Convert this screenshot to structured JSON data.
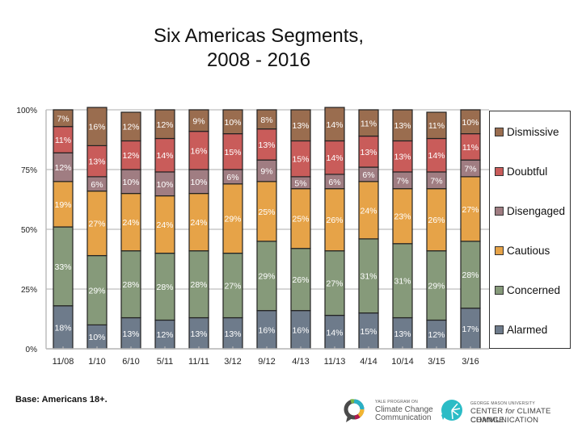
{
  "chart_data": {
    "type": "bar",
    "stacked": true,
    "percent_stacked": true,
    "title": "Six Americas Segments,\n2008 - 2016",
    "title_lines": [
      "Six Americas Segments,",
      "2008 - 2016"
    ],
    "xlabel": "",
    "ylabel": "",
    "ylim": [
      0,
      100
    ],
    "yticks": [
      "0%",
      "25%",
      "50%",
      "75%",
      "100%"
    ],
    "ytick_values": [
      0,
      25,
      50,
      75,
      100
    ],
    "grid": true,
    "legend_position": "right",
    "categories": [
      "11/08",
      "1/10",
      "6/10",
      "5/11",
      "11/11",
      "3/12",
      "9/12",
      "4/13",
      "11/13",
      "4/14",
      "10/14",
      "3/15",
      "3/16"
    ],
    "series": [
      {
        "name": "Alarmed",
        "color": "#6e7b8b",
        "values": [
          18,
          10,
          13,
          12,
          13,
          13,
          16,
          16,
          14,
          15,
          13,
          12,
          17
        ]
      },
      {
        "name": "Concerned",
        "color": "#869a7a",
        "values": [
          33,
          29,
          28,
          28,
          28,
          27,
          29,
          26,
          27,
          31,
          31,
          29,
          28
        ]
      },
      {
        "name": "Cautious",
        "color": "#e6a348",
        "values": [
          19,
          27,
          24,
          24,
          24,
          29,
          25,
          25,
          26,
          24,
          23,
          26,
          27
        ]
      },
      {
        "name": "Disengaged",
        "color": "#a07d82",
        "values": [
          12,
          6,
          10,
          10,
          10,
          6,
          9,
          5,
          6,
          6,
          7,
          7,
          7
        ]
      },
      {
        "name": "Doubtful",
        "color": "#c95c5a",
        "values": [
          11,
          13,
          12,
          14,
          16,
          15,
          13,
          15,
          14,
          13,
          13,
          14,
          11
        ]
      },
      {
        "name": "Dismissive",
        "color": "#9a6d4f",
        "values": [
          7,
          16,
          12,
          12,
          9,
          10,
          8,
          13,
          14,
          11,
          13,
          11,
          10
        ]
      }
    ],
    "legend_order": [
      "Dismissive",
      "Doubtful",
      "Disengaged",
      "Cautious",
      "Concerned",
      "Alarmed"
    ]
  },
  "footer": {
    "base_note": "Base: Americans 18+.",
    "yale_logo": {
      "small": "YALE PROGRAM ON",
      "line1": "Climate Change",
      "line2": "Communication"
    },
    "gmu_logo": {
      "small": "GEORGE MASON UNIVERSITY",
      "line1_a": "CENTER ",
      "line1_for": "for",
      "line1_b": " CLIMATE CHANGE",
      "line2": "COMMUNICATION"
    }
  }
}
